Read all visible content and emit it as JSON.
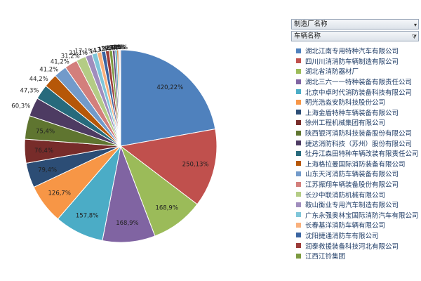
{
  "panel": {
    "field_manufacturer": "制造厂名称",
    "field_vehicle": "车辆名称",
    "dropdown_icon": "chevron-down-icon",
    "filter_icon": "filter-icon"
  },
  "chart_data": {
    "type": "pie",
    "title": "",
    "slices": [
      {
        "label": "湖北江南专用特种汽车有限公司",
        "value": 420,
        "percent": 22,
        "color": "#4f81bd"
      },
      {
        "label": "四川川消消防车辆制造有限公司",
        "value": 250,
        "percent": 13,
        "color": "#c0504d"
      },
      {
        "label": "湖北省消防器材厂",
        "value": 168,
        "percent": 9,
        "color": "#9bbb59"
      },
      {
        "label": "湖北三六一一特种装备有限责任公司",
        "value": 168,
        "percent": 9,
        "color": "#8064a2"
      },
      {
        "label": "北京中卓时代消防装备科技有限公司",
        "value": 157,
        "percent": 8,
        "color": "#4bacc6"
      },
      {
        "label": "明光浩淼安防科技股份公司",
        "value": 126,
        "percent": 7,
        "color": "#f79646"
      },
      {
        "label": "上海金盾特种车辆装备有限公司",
        "value": 79,
        "percent": 4,
        "color": "#2c4d75"
      },
      {
        "label": "徐州工程机械集团有限公司",
        "value": 76,
        "percent": 4,
        "color": "#772c2a"
      },
      {
        "label": "陕西银河消防科技装备股份有限公司",
        "value": 75,
        "percent": 4,
        "color": "#5f7530"
      },
      {
        "label": "捷达消防科技（苏州）股份有限公司",
        "value": 60,
        "percent": 3,
        "color": "#4d3b62"
      },
      {
        "label": "牡丹江森田特种车辆改装有限责任公司",
        "value": 47,
        "percent": 3,
        "color": "#276a7c"
      },
      {
        "label": "上海格拉曼国际消防装备有限公司",
        "value": 44,
        "percent": 2,
        "color": "#b65708"
      },
      {
        "label": "山东天河消防车辆装备有限公司",
        "value": 41,
        "percent": 2,
        "color": "#729aca"
      },
      {
        "label": "江苏振翔车辆装备股份有限公司",
        "value": 41,
        "percent": 2,
        "color": "#d37f7c"
      },
      {
        "label": "长沙中联消防机械有限公司",
        "value": 31,
        "percent": 2,
        "color": "#b4cc85"
      },
      {
        "label": "鞍山衡业专用汽车制造有限公司",
        "value": 21,
        "percent": 1,
        "color": "#a08dbd"
      },
      {
        "label": "广东永强奥林宝国际消防汽车有限公司",
        "value": 17,
        "percent": 1,
        "color": "#7fc6d9"
      },
      {
        "label": "长春基洋消防车辆有限公司",
        "value": 14,
        "percent": 1,
        "color": "#f9b07c"
      },
      {
        "label": "沈阳捷通消防车有限公司",
        "value": 13,
        "percent": 1,
        "color": "#3a64a1"
      },
      {
        "label": "润泰救援装备科技河北有限公司",
        "value": 12,
        "percent": 1,
        "color": "#9b3b38"
      },
      {
        "label": "江西江铃集团",
        "value": 10,
        "percent": 1,
        "color": "#7c9a3f"
      },
      {
        "label": "",
        "value": 8,
        "percent": 0,
        "color": "#654f82"
      },
      {
        "label": "",
        "value": 6,
        "percent": 0,
        "color": "#2f8fa6"
      },
      {
        "label": "",
        "value": 5,
        "percent": 0,
        "color": "#de7b1f"
      },
      {
        "label": "",
        "value": 4,
        "percent": 0,
        "color": "#95b3d7"
      },
      {
        "label": "",
        "value": 3,
        "percent": 0,
        "color": "#e6b9b8"
      }
    ]
  }
}
